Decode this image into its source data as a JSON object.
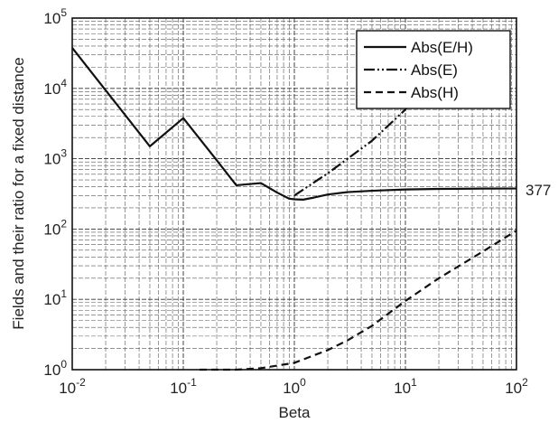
{
  "chart_data": {
    "type": "line",
    "xlabel": "Beta",
    "ylabel": "Fields and their ratio for a fixed distance",
    "x_scale": "log",
    "y_scale": "log",
    "xlim": [
      0.01,
      100
    ],
    "ylim": [
      1,
      100000
    ],
    "x_ticks": [
      {
        "base": "10",
        "exp": "-2"
      },
      {
        "base": "10",
        "exp": "-1"
      },
      {
        "base": "10",
        "exp": "0"
      },
      {
        "base": "10",
        "exp": "1"
      },
      {
        "base": "10",
        "exp": "2"
      }
    ],
    "y_ticks": [
      {
        "base": "10",
        "exp": "0"
      },
      {
        "base": "10",
        "exp": "1"
      },
      {
        "base": "10",
        "exp": "2"
      },
      {
        "base": "10",
        "exp": "3"
      },
      {
        "base": "10",
        "exp": "4"
      },
      {
        "base": "10",
        "exp": "5"
      }
    ],
    "grid": true,
    "legend_position": "top-right",
    "annotation": "377",
    "series": [
      {
        "name": "Abs(E/H)",
        "style": "solid",
        "x": [
          0.01,
          0.02,
          0.05,
          0.1,
          0.2,
          0.3,
          0.5,
          0.7,
          0.9,
          1.0,
          1.2,
          1.5,
          2,
          3,
          5,
          10,
          20,
          50,
          100
        ],
        "y": [
          37700,
          9400,
          1500,
          3780,
          950,
          420,
          450,
          330,
          270,
          265,
          262,
          280,
          310,
          335,
          350,
          365,
          372,
          376,
          377
        ]
      },
      {
        "name": "Abs(E)",
        "style": "dash-dot-dot",
        "x": [
          1.0,
          2,
          5,
          10,
          20,
          40
        ],
        "y": [
          300,
          620,
          1800,
          5000,
          18000,
          60000
        ]
      },
      {
        "name": "Abs(H)",
        "style": "dashed",
        "x": [
          0.14,
          0.3,
          0.5,
          1.0,
          1.5,
          2,
          3,
          5,
          10,
          20,
          50,
          100
        ],
        "y": [
          1,
          1,
          1.05,
          1.25,
          1.6,
          1.9,
          2.6,
          4.2,
          9.5,
          20,
          48,
          95
        ]
      }
    ]
  }
}
